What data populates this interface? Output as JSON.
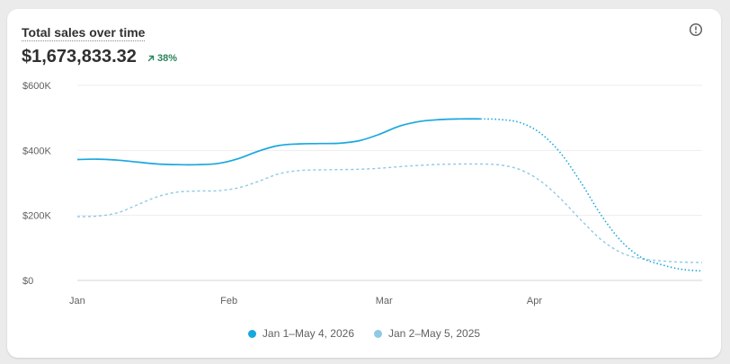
{
  "card": {
    "title": "Total sales over time",
    "value": "$1,673,833.32",
    "change": "38%",
    "change_icon": "arrow-up-right-icon",
    "info_icon": "info-icon"
  },
  "colors": {
    "current": "#1aa7e0",
    "previous": "#8ec9e6",
    "positive": "#29845a"
  },
  "chart_data": {
    "type": "line",
    "title": "Total sales over time",
    "x_tick_labels": [
      "Jan",
      "Feb",
      "Mar",
      "Apr"
    ],
    "y_tick_labels": [
      "$0",
      "$200K",
      "$400K",
      "$600K"
    ],
    "y_ticks": [
      0,
      200000,
      400000,
      600000
    ],
    "ylim": [
      0,
      600000
    ],
    "grid": true,
    "legend_placement": "bottom",
    "series": [
      {
        "name": "Jan 1–May 4, 2026",
        "x": [
          0,
          1,
          2,
          3,
          4,
          5,
          6,
          7,
          8,
          9,
          10,
          11,
          12,
          13,
          14,
          15,
          16,
          17,
          18,
          19,
          20,
          21,
          22,
          23,
          24,
          25,
          26,
          27,
          28,
          29,
          30,
          31
        ],
        "values": [
          372000,
          373000,
          370000,
          364000,
          358000,
          356000,
          356000,
          360000,
          375000,
          398000,
          415000,
          420000,
          421000,
          422000,
          430000,
          450000,
          475000,
          489000,
          495000,
          497000,
          497000,
          495000,
          485000,
          452000,
          390000,
          300000,
          200000,
          120000,
          70000,
          48000,
          34000,
          29000
        ],
        "solid_through_index": 20
      },
      {
        "name": "Jan 2–May 5, 2025",
        "x": [
          0,
          1,
          2,
          3,
          4,
          5,
          6,
          7,
          8,
          9,
          10,
          11,
          12,
          13,
          14,
          15,
          16,
          17,
          18,
          19,
          20,
          21,
          22,
          23,
          24,
          25,
          26,
          27,
          28,
          29,
          30,
          31
        ],
        "values": [
          196000,
          198000,
          208000,
          233000,
          258000,
          272000,
          275000,
          276000,
          285000,
          305000,
          328000,
          338000,
          340000,
          341000,
          342000,
          345000,
          350000,
          354000,
          357000,
          358000,
          358000,
          355000,
          340000,
          305000,
          250000,
          185000,
          125000,
          85000,
          67000,
          60000,
          56000,
          55000
        ]
      }
    ]
  }
}
